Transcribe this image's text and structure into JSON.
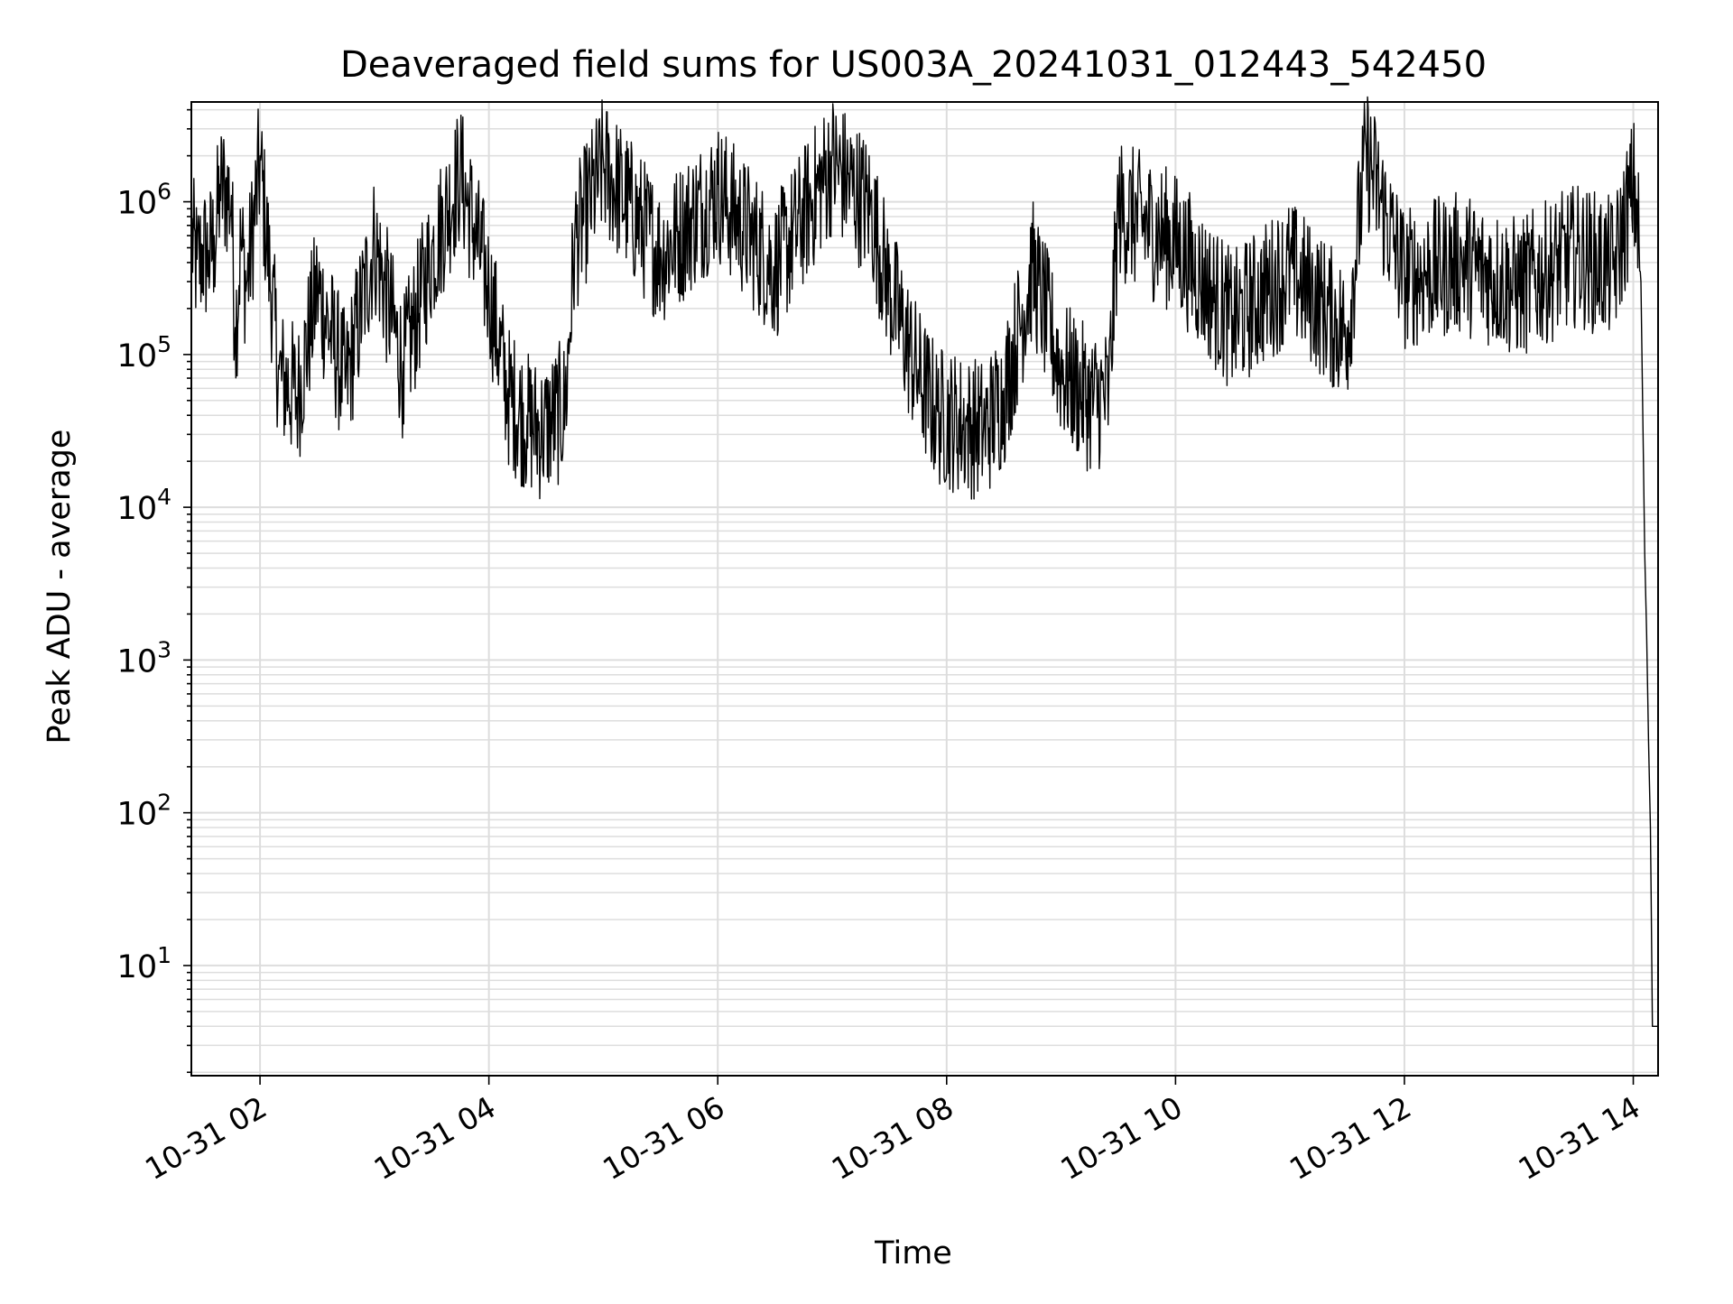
{
  "colors": {
    "background": "#ffffff",
    "line": "#000000",
    "grid": "#dddddd",
    "axes": "#000000"
  },
  "chart_data": {
    "type": "line",
    "title": "Deaveraged field sums for US003A_20241031_012443_542450",
    "xlabel": "Time",
    "ylabel": "Peak ADU - average",
    "yscale": "log",
    "grid": true,
    "xlim": [
      "10-31 01:24",
      "10-31 14:13"
    ],
    "ylim": [
      1.9,
      4500000
    ],
    "x_ticks": [
      "10-31 02",
      "10-31 04",
      "10-31 06",
      "10-31 08",
      "10-31 10",
      "10-31 12",
      "10-31 14"
    ],
    "y_ticks": [
      {
        "base": "10",
        "exp": "1",
        "value": 10
      },
      {
        "base": "10",
        "exp": "2",
        "value": 100
      },
      {
        "base": "10",
        "exp": "3",
        "value": 1000
      },
      {
        "base": "10",
        "exp": "4",
        "value": 10000
      },
      {
        "base": "10",
        "exp": "5",
        "value": 100000
      },
      {
        "base": "10",
        "exp": "6",
        "value": 1000000
      }
    ],
    "series": [
      {
        "points": [
          [
            "10-31 01:24",
            650000
          ],
          [
            "10-31 01:27",
            420000
          ],
          [
            "10-31 01:30",
            520000
          ],
          [
            "10-31 01:33",
            480000
          ],
          [
            "10-31 01:36",
            600000
          ],
          [
            "10-31 01:39",
            1300000
          ],
          [
            "10-31 01:42",
            1350000
          ],
          [
            "10-31 01:45",
            1100000
          ],
          [
            "10-31 01:47",
            150000
          ],
          [
            "10-31 01:50",
            600000
          ],
          [
            "10-31 01:53",
            300000
          ],
          [
            "10-31 02:00",
            2000000
          ],
          [
            "10-31 02:10",
            80000
          ],
          [
            "10-31 02:20",
            60000
          ],
          [
            "10-31 02:30",
            300000
          ],
          [
            "10-31 02:45",
            70000
          ],
          [
            "10-31 03:00",
            600000
          ],
          [
            "10-31 03:15",
            90000
          ],
          [
            "10-31 03:30",
            500000
          ],
          [
            "10-31 03:45",
            1700000
          ],
          [
            "10-31 04:00",
            300000
          ],
          [
            "10-31 04:10",
            60000
          ],
          [
            "10-31 04:20",
            40000
          ],
          [
            "10-31 04:28",
            35000
          ],
          [
            "10-31 04:40",
            50000
          ],
          [
            "10-31 04:45",
            600000
          ],
          [
            "10-31 05:00",
            1900000
          ],
          [
            "10-31 05:30",
            500000
          ],
          [
            "10-31 06:00",
            1300000
          ],
          [
            "10-31 06:30",
            400000
          ],
          [
            "10-31 07:00",
            2000000
          ],
          [
            "10-31 07:20",
            1000000
          ],
          [
            "10-31 07:30",
            300000
          ],
          [
            "10-31 07:45",
            80000
          ],
          [
            "10-31 07:55",
            45000
          ],
          [
            "10-31 08:10",
            38000
          ],
          [
            "10-31 08:20",
            36000
          ],
          [
            "10-31 08:30",
            60000
          ],
          [
            "10-31 08:45",
            400000
          ],
          [
            "10-31 09:00",
            90000
          ],
          [
            "10-31 09:15",
            55000
          ],
          [
            "10-31 09:25",
            60000
          ],
          [
            "10-31 09:30",
            1000000
          ],
          [
            "10-31 10:00",
            600000
          ],
          [
            "10-31 10:30",
            180000
          ],
          [
            "10-31 11:00",
            400000
          ],
          [
            "10-31 11:30",
            150000
          ],
          [
            "10-31 11:40",
            2300000
          ],
          [
            "10-31 12:00",
            350000
          ],
          [
            "10-31 12:30",
            450000
          ],
          [
            "10-31 13:00",
            300000
          ],
          [
            "10-31 13:30",
            500000
          ],
          [
            "10-31 13:50",
            400000
          ],
          [
            "10-31 14:00",
            1400000
          ],
          [
            "10-31 14:02",
            1000000
          ],
          [
            "10-31 14:04",
            300000
          ],
          [
            "10-31 14:06",
            5000
          ],
          [
            "10-31 14:07",
            1500
          ],
          [
            "10-31 14:08",
            300
          ],
          [
            "10-31 14:09",
            80
          ],
          [
            "10-31 14:10",
            4
          ],
          [
            "10-31 14:13",
            4
          ]
        ]
      }
    ]
  }
}
